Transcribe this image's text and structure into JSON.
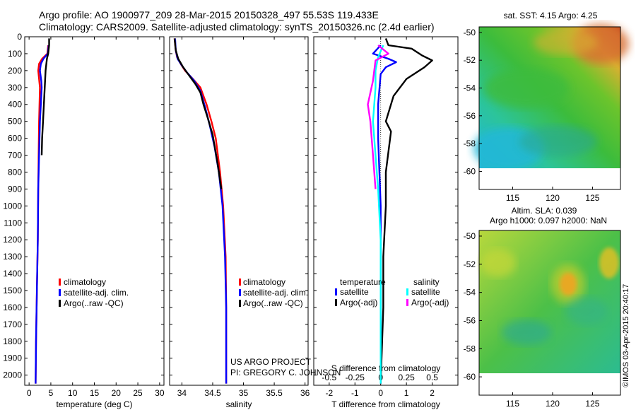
{
  "header": {
    "line1": "Argo profile: AO 1900977_209 28-Mar-2015 20150328_497 55.53S 119.433E",
    "line2": "Climatology: CARS2009. Satellite-adjusted climatology: synTS_20150326.nc (2.4d earlier)"
  },
  "colors": {
    "climatology": "#ff0000",
    "satellite": "#0000ff",
    "argo": "#000000",
    "salinity_satellite": "#00ffff",
    "salinity_argo": "#ff00ff"
  },
  "chart_data": [
    {
      "type": "line",
      "id": "temperature",
      "xlabel": "temperature (deg C)",
      "xlim": [
        -1,
        31
      ],
      "ylim": [
        2060,
        0
      ],
      "xticks": [
        0,
        5,
        10,
        15,
        20,
        25,
        30
      ],
      "yticks": [
        0,
        100,
        200,
        300,
        400,
        500,
        600,
        700,
        800,
        900,
        1000,
        1100,
        1200,
        1300,
        1400,
        1500,
        1600,
        1700,
        1800,
        1900,
        2000
      ],
      "legend": [
        "climatology",
        "satellite-adj. clim.",
        "Argo(..raw -QC)"
      ],
      "series": [
        {
          "name": "climatology",
          "color": "#ff0000",
          "points": [
            [
              4.4,
              50
            ],
            [
              4.2,
              100
            ],
            [
              3.0,
              130
            ],
            [
              2.3,
              160
            ],
            [
              2.1,
              200
            ],
            [
              2.3,
              250
            ],
            [
              2.5,
              300
            ],
            [
              2.4,
              400
            ],
            [
              2.3,
              500
            ],
            [
              2.2,
              700
            ],
            [
              2.1,
              900
            ],
            [
              2.0,
              1200
            ],
            [
              1.8,
              1500
            ],
            [
              1.6,
              1800
            ],
            [
              1.5,
              2050
            ]
          ]
        },
        {
          "name": "satellite-adj. clim.",
          "color": "#0000ff",
          "points": [
            [
              4.5,
              50
            ],
            [
              4.3,
              100
            ],
            [
              3.3,
              130
            ],
            [
              2.7,
              160
            ],
            [
              2.5,
              200
            ],
            [
              2.8,
              260
            ],
            [
              2.9,
              300
            ],
            [
              2.7,
              400
            ],
            [
              2.5,
              500
            ],
            [
              2.3,
              700
            ],
            [
              2.1,
              900
            ],
            [
              2.0,
              1200
            ],
            [
              1.8,
              1500
            ],
            [
              1.6,
              1800
            ],
            [
              1.5,
              2050
            ]
          ]
        },
        {
          "name": "Argo(..raw -QC)",
          "color": "#000000",
          "points": [
            [
              4.6,
              10
            ],
            [
              4.6,
              50
            ],
            [
              4.4,
              100
            ],
            [
              4.1,
              130
            ],
            [
              3.8,
              200
            ],
            [
              3.6,
              300
            ],
            [
              3.4,
              400
            ],
            [
              3.2,
              500
            ],
            [
              3.0,
              600
            ],
            [
              2.9,
              700
            ]
          ]
        }
      ]
    },
    {
      "type": "line",
      "id": "salinity",
      "xlabel": "salinity",
      "xlim": [
        33.8,
        36.05
      ],
      "ylim": [
        2060,
        0
      ],
      "xticks": [
        34,
        34.5,
        35,
        35.5,
        36
      ],
      "xticklabels": [
        "34",
        "34.5",
        "35",
        "35.5",
        "36"
      ],
      "legend": [
        "climatology",
        "satellite-adj. clim.",
        "Argo(..raw -QC)"
      ],
      "annotation": [
        "US ARGO PROJECT",
        "PI: GREGORY C. JOHNSON"
      ],
      "series": [
        {
          "name": "climatology",
          "color": "#ff0000",
          "points": [
            [
              33.88,
              10
            ],
            [
              33.9,
              80
            ],
            [
              33.92,
              120
            ],
            [
              33.98,
              160
            ],
            [
              34.05,
              200
            ],
            [
              34.18,
              250
            ],
            [
              34.3,
              300
            ],
            [
              34.4,
              400
            ],
            [
              34.48,
              500
            ],
            [
              34.55,
              600
            ],
            [
              34.62,
              800
            ],
            [
              34.67,
              1000
            ],
            [
              34.71,
              1300
            ],
            [
              34.72,
              1600
            ],
            [
              34.72,
              2050
            ]
          ]
        },
        {
          "name": "satellite-adj. clim.",
          "color": "#0000ff",
          "points": [
            [
              33.89,
              10
            ],
            [
              33.9,
              80
            ],
            [
              33.93,
              130
            ],
            [
              34.0,
              170
            ],
            [
              34.08,
              210
            ],
            [
              34.2,
              260
            ],
            [
              34.3,
              320
            ],
            [
              34.38,
              420
            ],
            [
              34.45,
              520
            ],
            [
              34.53,
              650
            ],
            [
              34.6,
              800
            ],
            [
              34.66,
              1000
            ],
            [
              34.7,
              1300
            ],
            [
              34.72,
              1600
            ],
            [
              34.72,
              2050
            ]
          ]
        },
        {
          "name": "Argo(..raw -QC)",
          "color": "#000000",
          "points": [
            [
              33.88,
              10
            ],
            [
              33.9,
              80
            ],
            [
              33.94,
              130
            ],
            [
              34.02,
              180
            ],
            [
              34.1,
              220
            ],
            [
              34.22,
              280
            ],
            [
              34.3,
              330
            ],
            [
              34.35,
              400
            ],
            [
              34.42,
              480
            ],
            [
              34.5,
              580
            ],
            [
              34.58,
              750
            ],
            [
              34.64,
              900
            ]
          ]
        }
      ]
    },
    {
      "type": "line",
      "id": "difference",
      "xlabel": "T difference from climatology",
      "x2label": "S difference from climatology",
      "xlim": [
        -2.6,
        3.0
      ],
      "ylim": [
        2060,
        0
      ],
      "xticks": [
        -2,
        -1,
        0,
        1,
        2
      ],
      "x2ticklabels": [
        "-0.5",
        "-0.25",
        "0",
        "0.25",
        "0.5"
      ],
      "legend_headers": [
        "temperature",
        "salinity"
      ],
      "legend": [
        "satellite",
        "Argo(-adj)",
        "satellite",
        "Argo(-adj)"
      ],
      "series": [
        {
          "name": "satellite",
          "color": "#0000ff",
          "points": [
            [
              0,
              50
            ],
            [
              -0.3,
              100
            ],
            [
              0.3,
              130
            ],
            [
              0.6,
              150
            ],
            [
              0.2,
              180
            ],
            [
              0,
              220
            ],
            [
              -0.1,
              400
            ],
            [
              -0.1,
              600
            ],
            [
              0,
              1000
            ],
            [
              0,
              1500
            ],
            [
              0,
              2050
            ]
          ]
        },
        {
          "name": "Argo(-adj)",
          "color": "#000000",
          "points": [
            [
              0.2,
              10
            ],
            [
              0.3,
              50
            ],
            [
              1.2,
              70
            ],
            [
              1.6,
              110
            ],
            [
              2.0,
              140
            ],
            [
              1.7,
              180
            ],
            [
              1.0,
              250
            ],
            [
              0.5,
              350
            ],
            [
              0.2,
              500
            ],
            [
              0.4,
              560
            ],
            [
              0.2,
              800
            ],
            [
              0.2,
              1000
            ],
            [
              0.1,
              1300
            ],
            [
              0.1,
              1600
            ],
            [
              0,
              2050
            ]
          ]
        },
        {
          "name": "satellite",
          "color": "#00ffff",
          "points": [
            [
              0.1,
              50
            ],
            [
              -0.1,
              120
            ],
            [
              -0.2,
              200
            ],
            [
              -0.2,
              300
            ],
            [
              -0.3,
              500
            ],
            [
              -0.2,
              700
            ],
            [
              -0.1,
              900
            ],
            [
              0,
              1200
            ],
            [
              0,
              2050
            ]
          ]
        },
        {
          "name": "Argo(-adj)",
          "color": "#ff00ff",
          "points": [
            [
              -0.1,
              50
            ],
            [
              0.3,
              100
            ],
            [
              -0.2,
              140
            ],
            [
              -0.3,
              260
            ],
            [
              -0.5,
              400
            ],
            [
              -0.4,
              500
            ],
            [
              -0.3,
              700
            ],
            [
              -0.2,
              900
            ]
          ]
        }
      ]
    },
    {
      "type": "heatmap",
      "id": "sst-map",
      "title": "sat. SST: 4.15 Argo: 4.25",
      "xticks": [
        115,
        120,
        125
      ],
      "yticks": [
        -50,
        -52,
        -54,
        -56,
        -58,
        -60
      ],
      "xlim": [
        110.8,
        128.5
      ],
      "ylim": [
        -61.3,
        -49.6
      ]
    },
    {
      "type": "heatmap",
      "id": "sla-map",
      "title": [
        "Altim. SLA: 0.039",
        "Argo h1000: 0.097 h2000: NaN"
      ],
      "xticks": [
        115,
        120,
        125
      ],
      "yticks": [
        -50,
        -52,
        -54,
        -56,
        -58,
        -60
      ],
      "xlim": [
        110.8,
        128.5
      ],
      "ylim": [
        -61.3,
        -49.6
      ]
    }
  ],
  "credit": "©IMOS 03-Apr-2015 20:40:17"
}
